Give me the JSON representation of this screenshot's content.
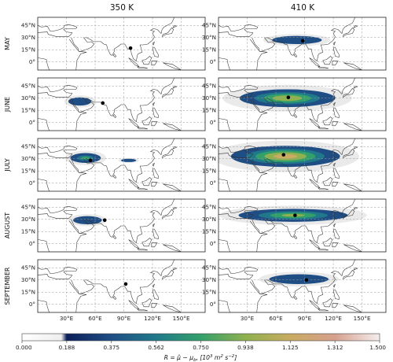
{
  "chart_data": {
    "type": "heatmap",
    "columns": [
      "350 K",
      "410 K"
    ],
    "rows": [
      "MAY",
      "JUNE",
      "JULY",
      "AUGUST",
      "SEPTEMBER"
    ],
    "lon_ticks": [
      "30°E",
      "60°E",
      "90°E",
      "120°E",
      "150°E"
    ],
    "lon_tick_values": [
      30,
      60,
      90,
      120,
      150
    ],
    "lat_ticks": [
      "45°N",
      "30°N",
      "15°N",
      "0°"
    ],
    "lat_tick_values": [
      45,
      30,
      15,
      0
    ],
    "lon_range": [
      0,
      175
    ],
    "lat_range": [
      -10,
      55
    ],
    "grid": true,
    "colorbar": {
      "ticks": [
        "0.000",
        "0.188",
        "0.375",
        "0.562",
        "0.750",
        "0.938",
        "1.125",
        "1.312",
        "1.500"
      ],
      "tick_values": [
        0,
        0.1875,
        0.375,
        0.5625,
        0.75,
        0.9375,
        1.125,
        1.3125,
        1.5
      ],
      "range": [
        0,
        1.5
      ],
      "label": "R = μ̂ − μ_b, [10³ m² s⁻²]",
      "label_parts": {
        "lead": "R = ",
        "mu_hat": "μ̂",
        "minus": " − ",
        "mu": "μ",
        "sub_b": "b",
        "units": ", [10",
        "exp3": "3",
        "m": " m",
        "exp2": "2",
        "s": " s",
        "expm2": "−2",
        "close": "]"
      }
    },
    "panels": [
      {
        "month": "MAY",
        "level": "350 K",
        "center": [
          97,
          17
        ],
        "anomaly_max": 0.05,
        "anomaly_regions": []
      },
      {
        "month": "MAY",
        "level": "410 K",
        "center": [
          88,
          26
        ],
        "anomaly_max": 0.45,
        "anomaly_regions": [
          {
            "center": [
              82,
              27
            ],
            "extent": [
              26,
              5
            ],
            "peak": 0.4
          }
        ]
      },
      {
        "month": "JUNE",
        "level": "350 K",
        "center": [
          68,
          24
        ],
        "anomaly_max": 0.35,
        "anomaly_regions": [
          {
            "center": [
              44,
              26
            ],
            "extent": [
              12,
              5
            ],
            "peak": 0.3
          }
        ]
      },
      {
        "month": "JUNE",
        "level": "410 K",
        "center": [
          73,
          31
        ],
        "anomaly_max": 0.85,
        "anomaly_regions": [
          {
            "center": [
              72,
              30
            ],
            "extent": [
              50,
              11
            ],
            "peak": 0.85
          }
        ]
      },
      {
        "month": "JULY",
        "level": "350 K",
        "center": [
          55,
          28
        ],
        "anomaly_max": 0.62,
        "anomaly_regions": [
          {
            "center": [
              50,
              31
            ],
            "extent": [
              16,
              6
            ],
            "peak": 0.6
          },
          {
            "center": [
              95,
              28
            ],
            "extent": [
              8,
              2
            ],
            "peak": 0.25
          }
        ]
      },
      {
        "month": "JULY",
        "level": "410 K",
        "center": [
          68,
          35
        ],
        "anomaly_max": 0.95,
        "anomaly_regions": [
          {
            "center": [
              70,
              33
            ],
            "extent": [
              57,
              13
            ],
            "peak": 0.95
          }
        ]
      },
      {
        "month": "AUGUST",
        "level": "350 K",
        "center": [
          70,
          29
        ],
        "anomaly_max": 0.35,
        "anomaly_regions": [
          {
            "center": [
              52,
              29
            ],
            "extent": [
              15,
              5
            ],
            "peak": 0.3
          }
        ]
      },
      {
        "month": "AUGUST",
        "level": "410 K",
        "center": [
          80,
          35
        ],
        "anomaly_max": 0.75,
        "anomaly_regions": [
          {
            "center": [
              78,
              35
            ],
            "extent": [
              57,
              8
            ],
            "peak": 0.75
          }
        ]
      },
      {
        "month": "SEPTEMBER",
        "level": "350 K",
        "center": [
          92,
          25
        ],
        "anomaly_max": 0.05,
        "anomaly_regions": []
      },
      {
        "month": "SEPTEMBER",
        "level": "410 K",
        "center": [
          92,
          30
        ],
        "anomaly_max": 0.4,
        "anomaly_regions": [
          {
            "center": [
              84,
              31
            ],
            "extent": [
              31,
              6
            ],
            "peak": 0.4
          }
        ]
      }
    ]
  }
}
